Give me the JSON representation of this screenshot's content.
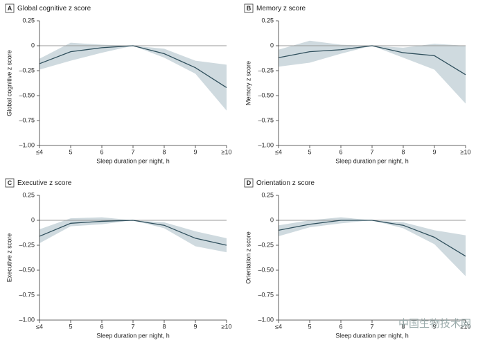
{
  "chart_data": [
    {
      "type": "line",
      "panel": "A",
      "title": "Global cognitive z score",
      "ylabel": "Global cognitive z score",
      "xlabel": "Sleep duration per night, h",
      "categories": [
        "≤4",
        "5",
        "6",
        "7",
        "8",
        "9",
        "≥10"
      ],
      "values": [
        -0.18,
        -0.06,
        -0.02,
        0,
        -0.08,
        -0.22,
        -0.42
      ],
      "lower": [
        -0.24,
        -0.15,
        -0.07,
        0,
        -0.12,
        -0.28,
        -0.65
      ],
      "upper": [
        -0.13,
        0.03,
        0.01,
        0,
        -0.03,
        -0.15,
        -0.19
      ],
      "color": "#2f4f5c",
      "band_color": "#cfdadf",
      "ylim": [
        -1,
        0.25
      ],
      "yticks": [
        0.25,
        0,
        {
          "value": -0.25,
          "label": "–0.25"
        },
        {
          "value": -0.5,
          "label": "–0.50"
        },
        {
          "value": -0.75,
          "label": "–0.75"
        },
        {
          "value": -1,
          "label": "–1.00"
        }
      ]
    },
    {
      "type": "line",
      "panel": "B",
      "title": "Memory z score",
      "ylabel": "Memory z score",
      "xlabel": "Sleep duration per night, h",
      "categories": [
        "≤4",
        "5",
        "6",
        "7",
        "8",
        "9",
        "≥10"
      ],
      "values": [
        -0.12,
        -0.06,
        -0.04,
        0,
        -0.07,
        -0.1,
        -0.29
      ],
      "lower": [
        -0.21,
        -0.17,
        -0.08,
        0,
        -0.12,
        -0.24,
        -0.58
      ],
      "upper": [
        -0.04,
        0.05,
        0.01,
        0,
        -0.02,
        0.02,
        0
      ],
      "color": "#2f4f5c",
      "band_color": "#cfdadf",
      "ylim": [
        -1,
        0.25
      ],
      "yticks": [
        0.25,
        0,
        {
          "value": -0.25,
          "label": "–0.25"
        },
        {
          "value": -0.5,
          "label": "–0.50"
        },
        {
          "value": -0.75,
          "label": "–0.75"
        },
        {
          "value": -1,
          "label": "–1.00"
        }
      ]
    },
    {
      "type": "line",
      "panel": "C",
      "title": "Executive z score",
      "ylabel": "Executive z score",
      "xlabel": "Sleep duration per night, h",
      "categories": [
        "≤4",
        "5",
        "6",
        "7",
        "8",
        "9",
        "≥10"
      ],
      "values": [
        -0.16,
        -0.03,
        -0.01,
        0,
        -0.05,
        -0.18,
        -0.25
      ],
      "lower": [
        -0.23,
        -0.06,
        -0.04,
        0,
        -0.08,
        -0.26,
        -0.32
      ],
      "upper": [
        -0.09,
        0.02,
        0.03,
        0,
        -0.02,
        -0.11,
        -0.18
      ],
      "color": "#2f4f5c",
      "band_color": "#cfdadf",
      "ylim": [
        -1,
        0.25
      ],
      "yticks": [
        0.25,
        0,
        {
          "value": -0.25,
          "label": "–0.25"
        },
        {
          "value": -0.5,
          "label": "–0.50"
        },
        {
          "value": -0.75,
          "label": "–0.75"
        },
        {
          "value": -1,
          "label": "–1.00"
        }
      ]
    },
    {
      "type": "line",
      "panel": "D",
      "title": "Orientation z score",
      "ylabel": "Orientation z score",
      "xlabel": "Sleep duration per night, h",
      "categories": [
        "≤4",
        "5",
        "6",
        "7",
        "8",
        "9",
        "≥10"
      ],
      "values": [
        -0.1,
        -0.04,
        0,
        0,
        -0.05,
        -0.17,
        -0.36
      ],
      "lower": [
        -0.16,
        -0.07,
        -0.03,
        0,
        -0.08,
        -0.24,
        -0.56
      ],
      "upper": [
        -0.05,
        0,
        0.03,
        0,
        -0.02,
        -0.1,
        -0.15
      ],
      "color": "#2f4f5c",
      "band_color": "#cfdadf",
      "ylim": [
        -1,
        0.25
      ],
      "yticks": [
        0.25,
        0,
        {
          "value": -0.25,
          "label": "–0.25"
        },
        {
          "value": -0.5,
          "label": "–0.50"
        },
        {
          "value": -0.75,
          "label": "–0.75"
        },
        {
          "value": -1,
          "label": "–1.00"
        }
      ]
    }
  ],
  "watermark": "中国生物技术网"
}
